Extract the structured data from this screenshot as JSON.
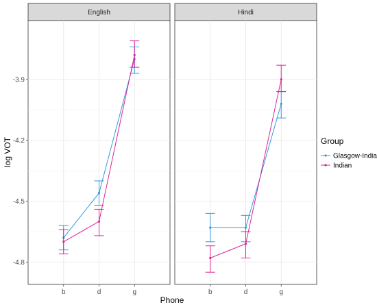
{
  "chart_data": {
    "type": "line",
    "xlabel": "Phone",
    "ylabel": "log VOT",
    "categories": [
      "b",
      "d",
      "g"
    ],
    "y_ticks": [
      -4.8,
      -4.5,
      -4.2,
      -3.9
    ],
    "ylim": [
      -4.91,
      -3.61
    ],
    "grid": true,
    "legend": {
      "title": "Group",
      "position": "right",
      "entries": [
        "Glasgow-Indian",
        "Indian"
      ]
    },
    "error_bars": true,
    "panels": [
      {
        "label": "English",
        "series": [
          {
            "name": "Glasgow-Indian",
            "color": "#3399dd",
            "values": [
              -4.68,
              -4.46,
              -3.8
            ],
            "lower": [
              -4.74,
              -4.52,
              -3.87
            ],
            "upper": [
              -4.62,
              -4.4,
              -3.74
            ]
          },
          {
            "name": "Indian",
            "color": "#dd2299",
            "values": [
              -4.7,
              -4.6,
              -3.78
            ],
            "lower": [
              -4.76,
              -4.67,
              -3.84
            ],
            "upper": [
              -4.64,
              -4.54,
              -3.71
            ]
          }
        ]
      },
      {
        "label": "Hindi",
        "series": [
          {
            "name": "Glasgow-Indian",
            "color": "#3399dd",
            "values": [
              -4.63,
              -4.63,
              -4.02
            ],
            "lower": [
              -4.7,
              -4.7,
              -4.09
            ],
            "upper": [
              -4.56,
              -4.57,
              -3.96
            ]
          },
          {
            "name": "Indian",
            "color": "#dd2299",
            "values": [
              -4.78,
              -4.71,
              -3.9
            ],
            "lower": [
              -4.85,
              -4.78,
              -3.96
            ],
            "upper": [
              -4.72,
              -4.65,
              -3.83
            ]
          }
        ]
      }
    ]
  }
}
